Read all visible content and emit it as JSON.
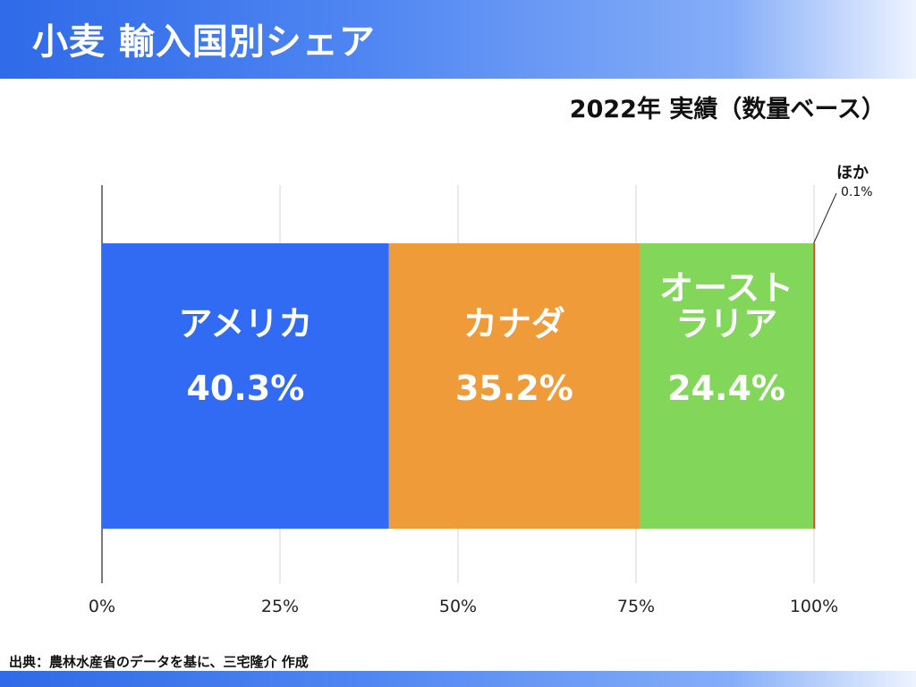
{
  "header": {
    "title": "小麦 輸入国別シェア",
    "subtitle": "2022年 実績（数量ベース）"
  },
  "footer": {
    "source": "出典：農林水産省のデータを基に、三宅隆介 作成"
  },
  "colors": {
    "accent": "#2f6ae8"
  },
  "chart_data": {
    "type": "bar",
    "orientation": "horizontal-stacked",
    "title": "小麦 輸入国別シェア",
    "subtitle": "2022年 実績（数量ベース）",
    "xlim": [
      0,
      100
    ],
    "x_ticks": [
      0,
      25,
      50,
      75,
      100
    ],
    "x_tick_labels": [
      "0%",
      "25%",
      "50%",
      "75%",
      "100%"
    ],
    "grid": true,
    "series": [
      {
        "name": "アメリカ",
        "label_lines": [
          "アメリカ"
        ],
        "value": 40.3,
        "value_label": "40.3%",
        "color": "#316bf3"
      },
      {
        "name": "カナダ",
        "label_lines": [
          "カナダ"
        ],
        "value": 35.2,
        "value_label": "35.2%",
        "color": "#ef9b3a"
      },
      {
        "name": "オーストラリア",
        "label_lines": [
          "オースト",
          "ラリア"
        ],
        "value": 24.4,
        "value_label": "24.4%",
        "color": "#82d65a"
      },
      {
        "name": "ほか",
        "label_lines": [
          "ほか"
        ],
        "value": 0.1,
        "value_label": "0.1%",
        "color": "#d9482b",
        "callout": true
      }
    ]
  }
}
